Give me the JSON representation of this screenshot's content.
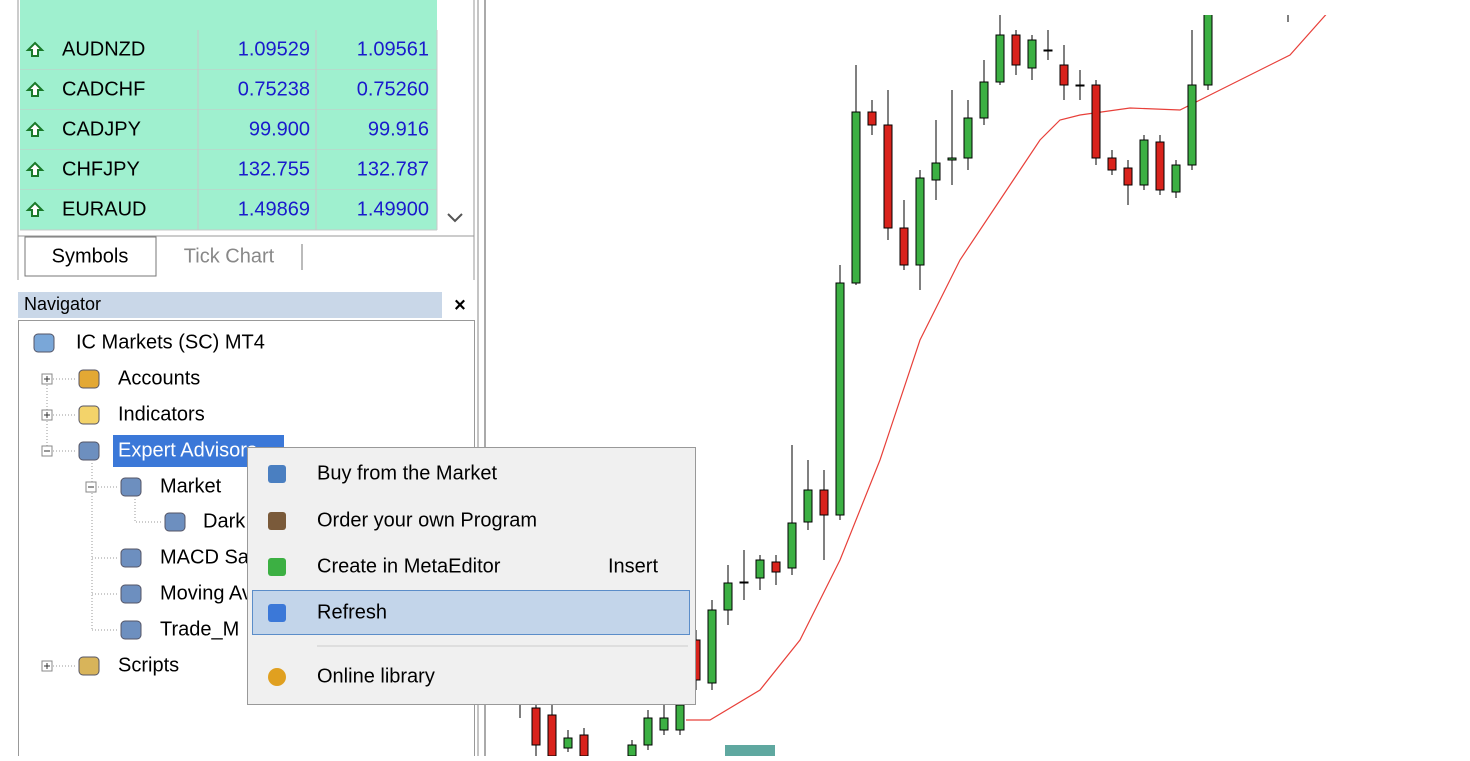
{
  "market_watch": {
    "rows": [
      [
        "AUDNZD",
        "1.09529",
        "1.09561"
      ],
      [
        "CADCHF",
        "0.75238",
        "0.75260"
      ],
      [
        "CADJPY",
        "99.900",
        "99.916"
      ],
      [
        "CHFJPY",
        "132.755",
        "132.787"
      ],
      [
        "EURAUD",
        "1.49869",
        "1.49900"
      ]
    ],
    "tabs": [
      "Symbols",
      "Tick Chart"
    ]
  },
  "navigator": {
    "title": "Navigator",
    "close": "×",
    "items": [
      "IC Markets (SC) MT4",
      "Accounts",
      "Indicators",
      "Expert Advisors",
      "Market",
      "Dark",
      "MACD Sample",
      "Moving Average",
      "Trade_M",
      "Scripts"
    ]
  },
  "context_menu": {
    "items": [
      {
        "label": "Buy from the Market"
      },
      {
        "label": "Order your own Program"
      },
      {
        "label": "Create in MetaEditor",
        "shortcut": "Insert"
      },
      {
        "label": "Refresh"
      },
      {
        "label": "Online library"
      }
    ]
  }
}
